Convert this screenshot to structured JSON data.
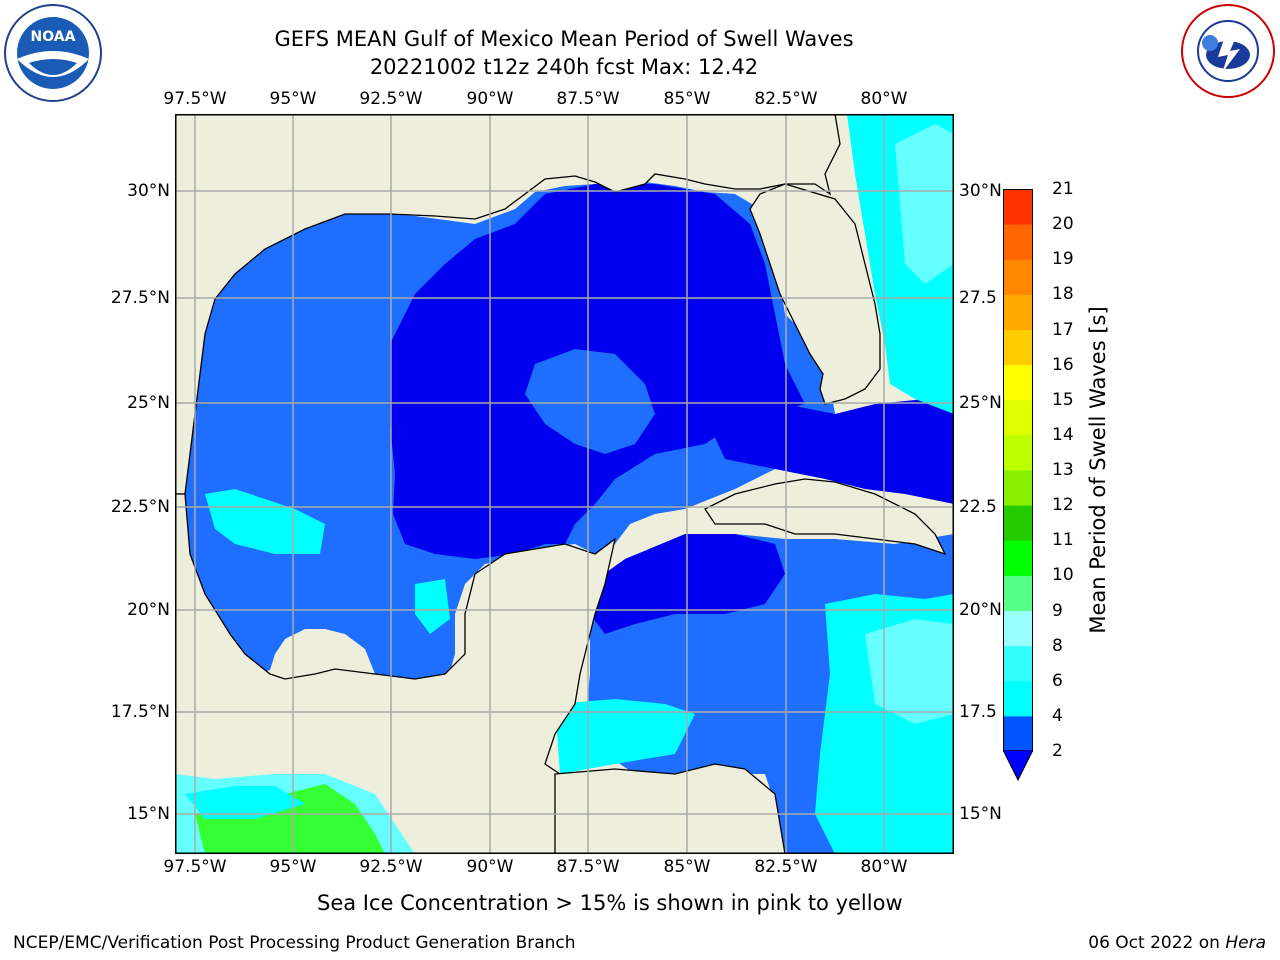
{
  "title_line1": "GEFS MEAN Gulf of Mexico Mean Period of Swell Waves",
  "title_line2": "20221002 t12z 240h fcst   Max: 12.42",
  "lon_labels": [
    "97.5°W",
    "95°W",
    "92.5°W",
    "90°W",
    "87.5°W",
    "85°W",
    "82.5°W",
    "80°W"
  ],
  "lat_labels": [
    "30°N",
    "27.5°N",
    "25°N",
    "22.5°N",
    "20°N",
    "17.5°N",
    "15°N"
  ],
  "lat_labels_right": [
    "30°N",
    "27.5",
    "25°N",
    "22.5",
    "20°N",
    "17.5",
    "15°N"
  ],
  "colorbar": {
    "title": "Mean Period of Swell Waves [s]",
    "ticks": [
      "2",
      "4",
      "6",
      "8",
      "9",
      "10",
      "11",
      "12",
      "13",
      "14",
      "15",
      "16",
      "17",
      "18",
      "19",
      "20",
      "21"
    ],
    "colors": [
      "#0033ff",
      "#00ffff",
      "#33ffff",
      "#66ffff",
      "#99ffff",
      "#66ff99",
      "#00ff00",
      "#33cc00",
      "#66ee00",
      "#99ff00",
      "#ccff00",
      "#eeff00",
      "#ffff00",
      "#ffcc00",
      "#ffaa00",
      "#ff8800",
      "#ff5500",
      "#ff2200",
      "#ff0000"
    ],
    "under_color": "#0000ff"
  },
  "colors": {
    "land": "#eeeedd",
    "deep_blue": "#0000ee",
    "blue": "#1e6eff",
    "cyan": "#00ffff",
    "light_cyan": "#66ffff",
    "green": "#33ff33"
  },
  "subtitle": "Sea Ice Concentration > 15% is shown in pink to yellow",
  "credit": "NCEP/EMC/Verification Post Processing Product Generation Branch",
  "date_text": "06 Oct 2022 on ",
  "date_host": "Hera",
  "logos": {
    "left": "noaa-logo",
    "right": "nws-logo"
  }
}
